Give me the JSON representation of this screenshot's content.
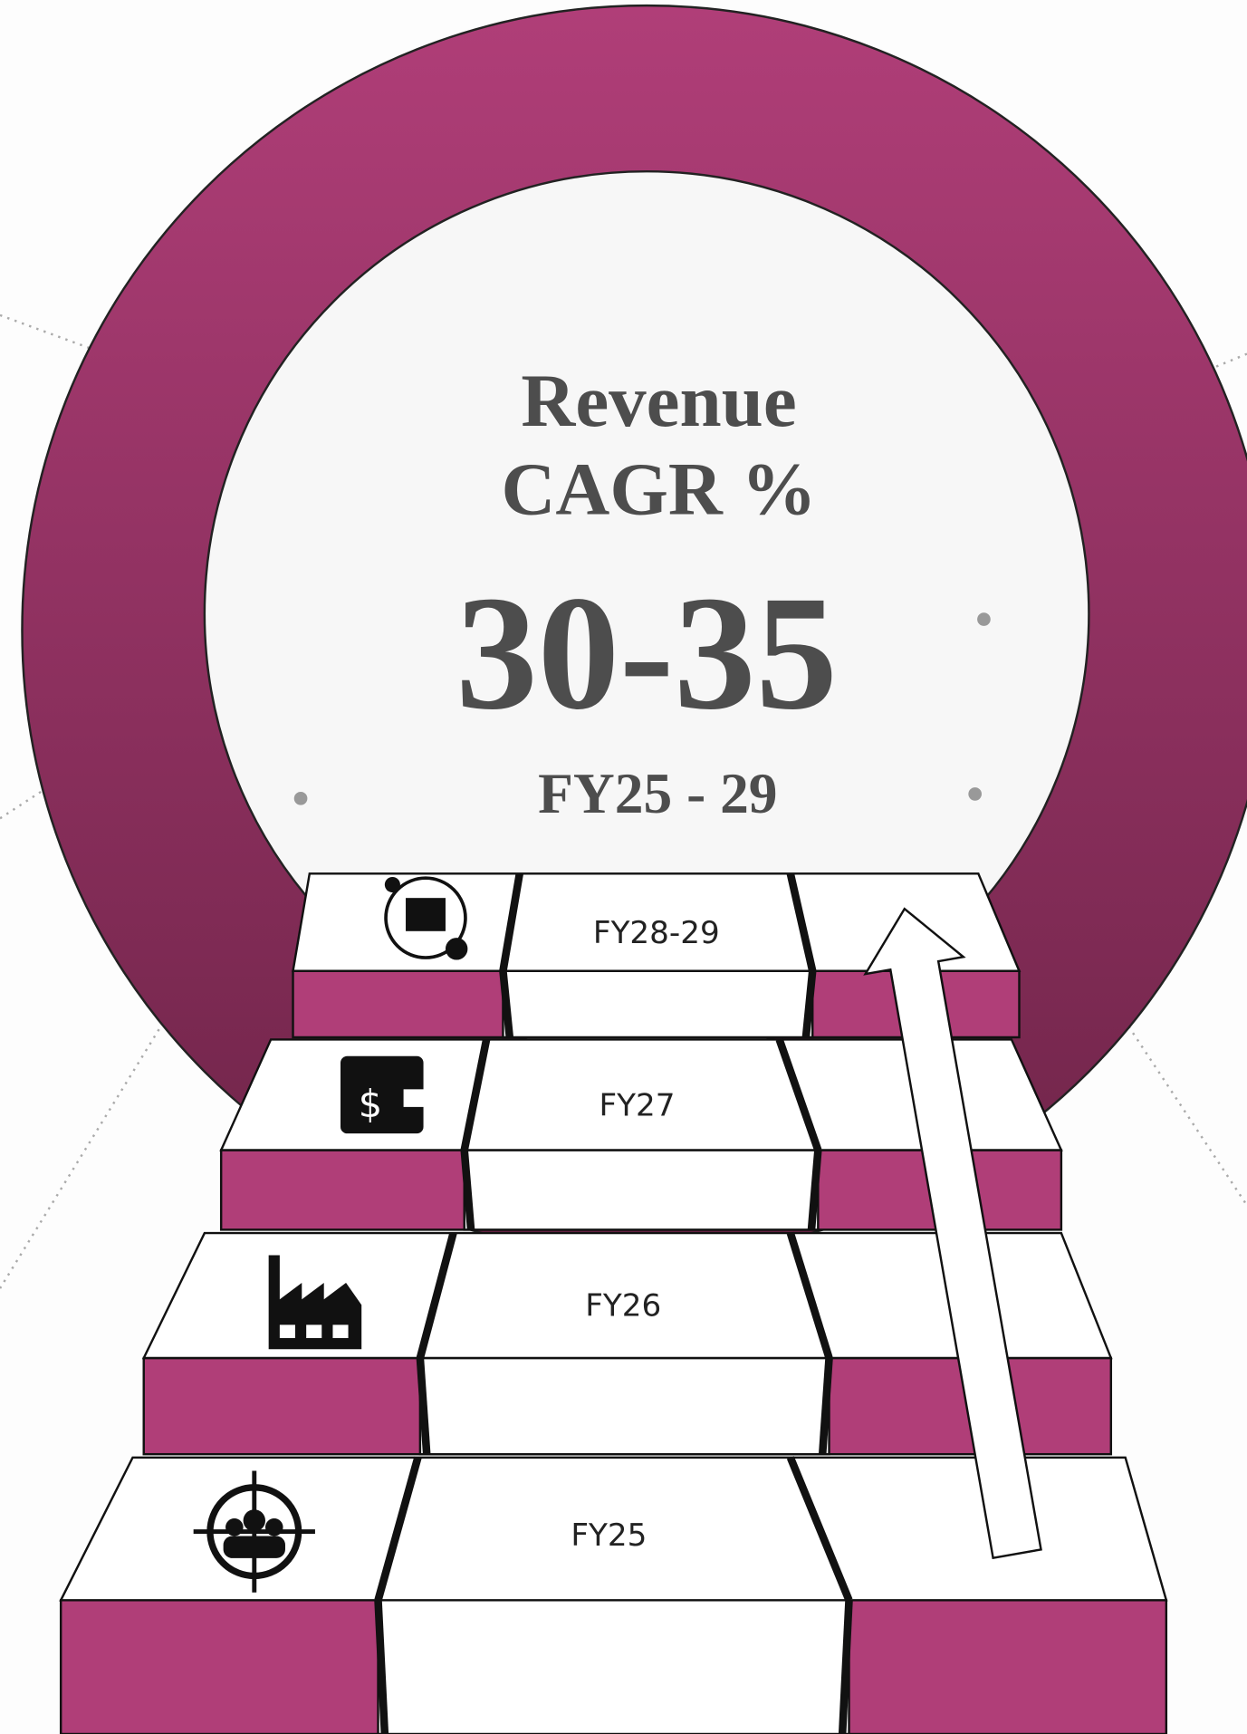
{
  "header": {
    "title_line1": "Revenue",
    "title_line2": "CAGR %",
    "value": "30-35",
    "period": "FY25 - 29"
  },
  "steps": [
    {
      "label": "FY25"
    },
    {
      "label": "FY26"
    },
    {
      "label": "FY27"
    },
    {
      "label": "FY28-29"
    }
  ]
}
